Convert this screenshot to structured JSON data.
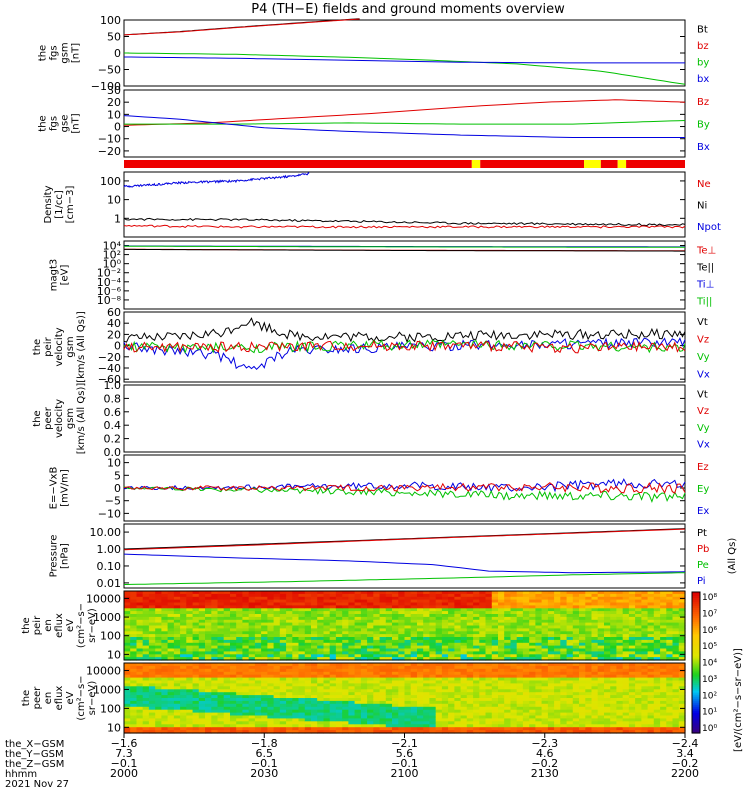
{
  "chart_data": {
    "type": "line",
    "title": "P4 (TH−E) fields and ground moments overview",
    "panels": [
      {
        "id": "fgs-gsm",
        "ylabel": [
          "the",
          "fgs",
          "gsm",
          "[nT]"
        ],
        "ylim": [
          -100,
          100
        ],
        "yticks": [
          100,
          50,
          0,
          -50,
          -100
        ],
        "ytick_labels": [
          "100",
          "50",
          "0",
          "−50",
          "−100"
        ],
        "legend": [
          {
            "label": "Bt",
            "color": "#000000"
          },
          {
            "label": "bz",
            "color": "#e00000"
          },
          {
            "label": "by",
            "color": "#00c000"
          },
          {
            "label": "bx",
            "color": "#0000e0"
          }
        ],
        "series": [
          {
            "name": "Bt",
            "color": "#000000",
            "x": [
              0,
              0.1,
              0.2,
              0.3,
              0.42
            ],
            "y": [
              55,
              65,
              78,
              90,
              104
            ]
          },
          {
            "name": "bz",
            "color": "#e00000",
            "x": [
              0,
              0.1,
              0.2,
              0.3,
              0.42
            ],
            "y": [
              55,
              64,
              77,
              89,
              103
            ]
          },
          {
            "name": "by",
            "color": "#00c000",
            "x": [
              0,
              0.2,
              0.4,
              0.55,
              0.7,
              0.85,
              1.0
            ],
            "y": [
              0,
              -4,
              -13,
              -22,
              -33,
              -55,
              -95
            ]
          },
          {
            "name": "bx",
            "color": "#0000e0",
            "x": [
              0,
              0.2,
              0.4,
              0.6,
              0.8,
              1.0
            ],
            "y": [
              -12,
              -16,
              -22,
              -28,
              -30,
              -30
            ]
          }
        ]
      },
      {
        "id": "fgs-gse",
        "ylabel": [
          "the",
          "fgs",
          "gse",
          "[nT]"
        ],
        "ylim": [
          -25,
          30
        ],
        "yticks": [
          30,
          20,
          10,
          0,
          -10,
          -20
        ],
        "ytick_labels": [
          "30",
          "20",
          "10",
          "0",
          "−10",
          "−20"
        ],
        "legend": [
          {
            "label": "Bz",
            "color": "#e00000"
          },
          {
            "label": "By",
            "color": "#00c000"
          },
          {
            "label": "Bx",
            "color": "#0000e0"
          }
        ],
        "series": [
          {
            "name": "Bz",
            "color": "#e00000",
            "x": [
              0,
              0.15,
              0.3,
              0.45,
              0.6,
              0.75,
              0.88,
              1.0
            ],
            "y": [
              1,
              3,
              7,
              11,
              16,
              20,
              22,
              20
            ]
          },
          {
            "name": "By",
            "color": "#00c000",
            "x": [
              0,
              0.2,
              0.4,
              0.6,
              0.8,
              1.0
            ],
            "y": [
              2,
              2,
              3,
              2,
              2,
              5
            ]
          },
          {
            "name": "Bx",
            "color": "#0000e0",
            "x": [
              0,
              0.1,
              0.25,
              0.4,
              0.6,
              0.8,
              1.0
            ],
            "y": [
              9,
              6,
              -1,
              -4,
              -7,
              -9,
              -9
            ]
          }
        ]
      },
      {
        "id": "mode-bar",
        "ylabel": [],
        "type": "bar-strip",
        "segments": [
          {
            "from": 0.0,
            "to": 0.62,
            "color": "#ee0000"
          },
          {
            "from": 0.62,
            "to": 0.635,
            "color": "#ffff00"
          },
          {
            "from": 0.635,
            "to": 0.82,
            "color": "#ee0000"
          },
          {
            "from": 0.82,
            "to": 0.85,
            "color": "#ffff00"
          },
          {
            "from": 0.85,
            "to": 0.88,
            "color": "#ee0000"
          },
          {
            "from": 0.88,
            "to": 0.895,
            "color": "#ffff00"
          },
          {
            "from": 0.895,
            "to": 1.0,
            "color": "#ee0000"
          }
        ]
      },
      {
        "id": "density",
        "ylabel": [
          "Density",
          "[1/cc]",
          "[cm−3]"
        ],
        "ylim": [
          0.1,
          300
        ],
        "scale": "log",
        "yticks": [
          100,
          10,
          1
        ],
        "ytick_labels": [
          "100",
          "10",
          "1"
        ],
        "legend": [
          {
            "label": "Ne",
            "color": "#e00000"
          },
          {
            "label": "Ni",
            "color": "#000000"
          },
          {
            "label": "Npot",
            "color": "#0000e0"
          }
        ],
        "series": [
          {
            "name": "Npot",
            "color": "#0000e0",
            "x": [
              0,
              0.1,
              0.2,
              0.3,
              0.33
            ],
            "y": [
              50,
              80,
              100,
              180,
              250
            ]
          },
          {
            "name": "Ni",
            "color": "#000000",
            "x": [
              0,
              0.2,
              0.4,
              0.6,
              0.8,
              1.0
            ],
            "y": [
              0.9,
              0.85,
              0.7,
              0.55,
              0.5,
              0.45
            ]
          },
          {
            "name": "Ne",
            "color": "#e00000",
            "x": [
              0,
              0.2,
              0.4,
              0.6,
              0.8,
              1.0
            ],
            "y": [
              0.4,
              0.35,
              0.35,
              0.35,
              0.35,
              0.35
            ]
          }
        ]
      },
      {
        "id": "temperature",
        "ylabel": [
          "magt3",
          "[eV]"
        ],
        "ylim": [
          1e-10,
          100000.0
        ],
        "scale": "log",
        "yticks": [
          10000.0,
          100.0,
          1.0,
          0.01,
          0.0001,
          1e-06,
          1e-08
        ],
        "ytick_labels": [
          "10⁴",
          "10²",
          "10⁰",
          "10⁻²",
          "10⁻⁴",
          "10⁻⁶",
          "10⁻⁸"
        ],
        "legend": [
          {
            "label": "Te⊥",
            "color": "#e00000"
          },
          {
            "label": "Te||",
            "color": "#000000"
          },
          {
            "label": "Ti⊥",
            "color": "#0000e0"
          },
          {
            "label": "Ti||",
            "color": "#00c000"
          }
        ],
        "series": [
          {
            "name": "Ti⊥",
            "color": "#0000e0",
            "x": [
              0,
              0.5,
              1.0
            ],
            "y": [
              8000,
              6000,
              5000
            ]
          },
          {
            "name": "Ti||",
            "color": "#00c000",
            "x": [
              0,
              0.5,
              1.0
            ],
            "y": [
              7000,
              5000,
              4000
            ]
          },
          {
            "name": "Te⊥",
            "color": "#e00000",
            "x": [
              0,
              0.5,
              1.0
            ],
            "y": [
              1500,
              900,
              700
            ]
          },
          {
            "name": "Te||",
            "color": "#000000",
            "x": [
              0,
              0.5,
              1.0
            ],
            "y": [
              1400,
              800,
              600
            ]
          }
        ]
      },
      {
        "id": "peir-velocity",
        "ylabel": [
          "the",
          "peir",
          "velocity",
          "gsm",
          "[km/s (All Qs)]"
        ],
        "ylim": [
          -65,
          60
        ],
        "yticks": [
          60,
          40,
          20,
          0,
          -20,
          -40,
          -60
        ],
        "ytick_labels": [
          "60",
          "40",
          "20",
          "0",
          "−20",
          "−40",
          "−60"
        ],
        "legend": [
          {
            "label": "Vt",
            "color": "#000000"
          },
          {
            "label": "Vz",
            "color": "#e00000"
          },
          {
            "label": "Vy",
            "color": "#00c000"
          },
          {
            "label": "Vx",
            "color": "#0000e0"
          }
        ],
        "series": [
          {
            "name": "Vt",
            "color": "#000000",
            "x": [
              0,
              0.1,
              0.18,
              0.22,
              0.3,
              0.5,
              0.7,
              0.9,
              1.0
            ],
            "y": [
              12,
              15,
              25,
              45,
              18,
              15,
              20,
              20,
              22
            ]
          },
          {
            "name": "Vx",
            "color": "#0000e0",
            "x": [
              0,
              0.1,
              0.18,
              0.22,
              0.3,
              0.5,
              0.7,
              1.0
            ],
            "y": [
              -2,
              -10,
              -20,
              -45,
              -8,
              -2,
              2,
              5
            ]
          },
          {
            "name": "Vy",
            "color": "#00c000",
            "x": [
              0,
              0.2,
              0.4,
              0.6,
              0.8,
              1.0
            ],
            "y": [
              -2,
              -5,
              0,
              2,
              0,
              -5
            ]
          },
          {
            "name": "Vz",
            "color": "#e00000",
            "x": [
              0,
              0.2,
              0.4,
              0.6,
              0.8,
              1.0
            ],
            "y": [
              -3,
              -2,
              0,
              0,
              -4,
              -2
            ]
          }
        ]
      },
      {
        "id": "peer-velocity",
        "ylabel": [
          "the",
          "peer",
          "velocity",
          "gsm",
          "[km/s (All Qs)]"
        ],
        "ylim": [
          0,
          1
        ],
        "yticks": [
          1.0,
          0.8,
          0.6,
          0.4,
          0.2,
          0.0
        ],
        "ytick_labels": [
          "1.0",
          "0.8",
          "0.6",
          "0.4",
          "0.2",
          "0.0"
        ],
        "legend": [
          {
            "label": "Vt",
            "color": "#000000"
          },
          {
            "label": "Vz",
            "color": "#e00000"
          },
          {
            "label": "Vy",
            "color": "#00c000"
          },
          {
            "label": "Vx",
            "color": "#0000e0"
          }
        ],
        "series": []
      },
      {
        "id": "efield",
        "ylabel": [
          "E=−VxB",
          "[mV/m]"
        ],
        "ylim": [
          -13,
          13
        ],
        "yticks": [
          10,
          5,
          0,
          -5,
          -10
        ],
        "ytick_labels": [
          "10",
          "5",
          "0",
          "−5",
          "−10"
        ],
        "legend": [
          {
            "label": "Ez",
            "color": "#e00000"
          },
          {
            "label": "Ey",
            "color": "#00c000"
          },
          {
            "label": "Ex",
            "color": "#0000e0"
          }
        ],
        "series": [
          {
            "name": "Ex",
            "color": "#0000e0",
            "x": [
              0,
              0.3,
              0.5,
              0.7,
              0.9,
              1.0
            ],
            "y": [
              0,
              0.5,
              1,
              0,
              2,
              1
            ]
          },
          {
            "name": "Ey",
            "color": "#00c000",
            "x": [
              0,
              0.3,
              0.5,
              0.7,
              0.9,
              1.0
            ],
            "y": [
              0,
              -1,
              -2,
              -3,
              -3,
              -4
            ]
          },
          {
            "name": "Ez",
            "color": "#e00000",
            "x": [
              0,
              0.3,
              0.5,
              0.7,
              0.9,
              1.0
            ],
            "y": [
              0,
              0,
              0,
              0.5,
              0,
              0
            ]
          }
        ]
      },
      {
        "id": "pressure",
        "ylabel": [
          "Pressure",
          "[nPa]"
        ],
        "ylim": [
          0.005,
          30
        ],
        "scale": "log",
        "yticks": [
          10,
          1,
          0.1,
          0.01
        ],
        "ytick_labels": [
          "10.00",
          "1.00",
          "0.10",
          "0.01"
        ],
        "right_label": "(All Qs)",
        "legend": [
          {
            "label": "Pt",
            "color": "#000000"
          },
          {
            "label": "Pb",
            "color": "#e00000"
          },
          {
            "label": "Pe",
            "color": "#00c000"
          },
          {
            "label": "Pi",
            "color": "#0000e0"
          }
        ],
        "series": [
          {
            "name": "Pt",
            "color": "#000000",
            "x": [
              0,
              0.25,
              0.5,
              0.75,
              1.0
            ],
            "y": [
              1.0,
              2.0,
              4.0,
              8.0,
              16.0
            ]
          },
          {
            "name": "Pb",
            "color": "#e00000",
            "x": [
              0,
              0.25,
              0.5,
              0.75,
              1.0
            ],
            "y": [
              0.9,
              1.8,
              3.8,
              7.5,
              15.0
            ]
          },
          {
            "name": "Pi",
            "color": "#0000e0",
            "x": [
              0,
              0.2,
              0.4,
              0.55,
              0.65,
              0.8,
              1.0
            ],
            "y": [
              0.5,
              0.3,
              0.2,
              0.12,
              0.05,
              0.04,
              0.045
            ]
          },
          {
            "name": "Pe",
            "color": "#00c000",
            "x": [
              0,
              0.3,
              0.6,
              0.8,
              1.0
            ],
            "y": [
              0.008,
              0.012,
              0.02,
              0.03,
              0.04
            ]
          }
        ]
      },
      {
        "id": "peir-spectrogram",
        "type": "heatmap",
        "ylabel": [
          "the",
          "peir",
          "en",
          "eflux",
          "eV",
          "(cm²−s−",
          "sr−eV)"
        ],
        "ylim": [
          5,
          25000
        ],
        "scale": "log",
        "yticks": [
          10000,
          1000,
          100,
          10
        ],
        "ytick_labels": [
          "10000",
          "1000",
          "100",
          "10"
        ]
      },
      {
        "id": "peer-spectrogram",
        "type": "heatmap",
        "ylabel": [
          "the",
          "peer",
          "en",
          "eflux",
          "eV",
          "(cm²−s−",
          "sr−eV)"
        ],
        "ylim": [
          5,
          25000
        ],
        "scale": "log",
        "yticks": [
          10000,
          1000,
          100,
          10
        ],
        "ytick_labels": [
          "10000",
          "1000",
          "100",
          "10"
        ]
      }
    ],
    "colorbar": {
      "label": "[eV/(cm²−s−sr−eV)]",
      "tick_labels": [
        "10⁸",
        "10⁷",
        "10⁶",
        "10⁵",
        "10⁴",
        "10³",
        "10²",
        "10¹",
        "10⁰"
      ]
    },
    "xaxis": {
      "rows": [
        {
          "label": "the_X−GSM",
          "values": [
            "−1.6",
            "−1.8",
            "−2.1",
            "−2.3",
            "−2.4"
          ]
        },
        {
          "label": "the_Y−GSM",
          "values": [
            "7.3",
            "6.5",
            "5.6",
            "4.6",
            "3.4"
          ]
        },
        {
          "label": "the_Z−GSM",
          "values": [
            "−0.1",
            "−0.1",
            "−0.1",
            "−0.2",
            "−0.2"
          ]
        },
        {
          "label": "hhmm",
          "values": [
            "2000",
            "2030",
            "2100",
            "2130",
            "2200"
          ]
        }
      ],
      "date": "2021 Nov 27"
    }
  }
}
